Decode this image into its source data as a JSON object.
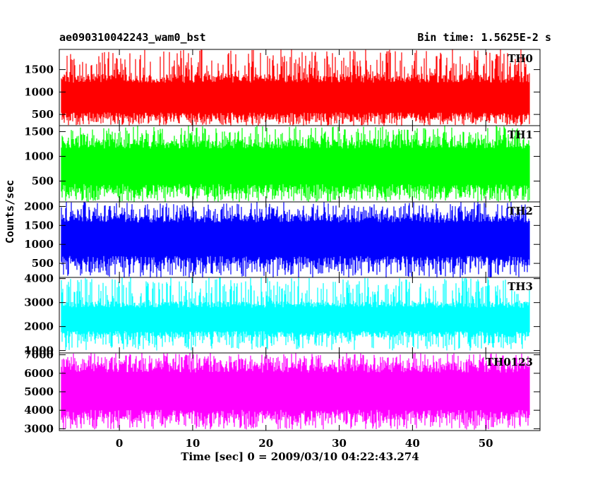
{
  "chart_data": {
    "type": "line",
    "title": "ae090310042243_wam0_bst",
    "subtitle": "Bin time: 1.5625E-2 s",
    "xlabel": "Time [sec] 0 = 2009/03/10 04:22:43.274",
    "ylabel": "Counts/sec",
    "xlim": [
      -8.2,
      57.4
    ],
    "x_range": [
      -8,
      56
    ],
    "xticks": [
      0,
      10,
      20,
      30,
      40,
      50
    ],
    "grid": false,
    "panels": [
      {
        "name": "TH0",
        "color": "#ff0000",
        "ylim": [
          250,
          1950
        ],
        "yticks": [
          500,
          1000,
          1500
        ],
        "mean": 850,
        "typ_low": 380,
        "typ_high": 1400,
        "min": 250,
        "max": 1950
      },
      {
        "name": "TH1",
        "color": "#00ff00",
        "ylim": [
          80,
          1620
        ],
        "yticks": [
          500,
          1000,
          1500
        ],
        "mean": 800,
        "typ_low": 250,
        "typ_high": 1350,
        "min": 80,
        "max": 1620
      },
      {
        "name": "TH2",
        "color": "#0000ff",
        "ylim": [
          130,
          2120
        ],
        "yticks": [
          500,
          1000,
          1500,
          2000
        ],
        "mean": 1150,
        "typ_low": 450,
        "typ_high": 1800,
        "min": 130,
        "max": 2120
      },
      {
        "name": "TH3",
        "color": "#00ffff",
        "ylim": [
          900,
          4050
        ],
        "yticks": [
          1000,
          2000,
          3000,
          4000
        ],
        "mean": 2300,
        "typ_low": 1550,
        "typ_high": 3050,
        "min": 1000,
        "max": 4050
      },
      {
        "name": "TH0123",
        "color": "#ff00ff",
        "ylim": [
          2900,
          7100
        ],
        "yticks": [
          3000,
          4000,
          5000,
          6000,
          7000
        ],
        "mean": 5000,
        "typ_low": 3500,
        "typ_high": 6600,
        "min": 2950,
        "max": 7100
      }
    ]
  }
}
